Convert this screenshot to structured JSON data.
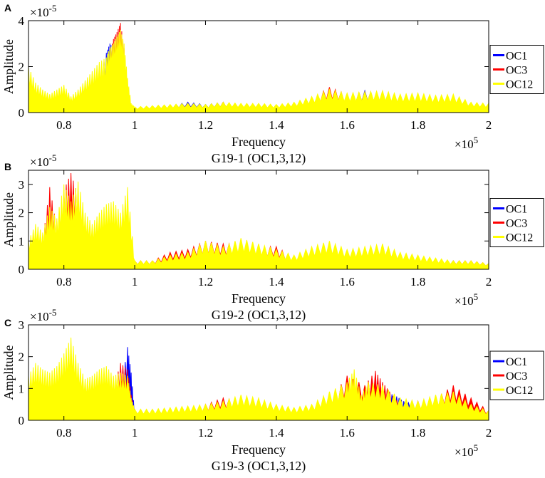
{
  "figure": {
    "background": "#ffffff",
    "axis_color": "#000000"
  },
  "chart_data": [
    {
      "panel_label": "A",
      "type": "line",
      "title": "G19-1 (OC1,3,12)",
      "xlabel": "Frequency",
      "ylabel": "Amplitude",
      "x_exponent": "×10",
      "x_exponent_power": "5",
      "y_exponent": "×10",
      "y_exponent_power": "-5",
      "xlim": [
        0.7,
        2.0
      ],
      "ylim": [
        0,
        4
      ],
      "xticks": [
        0.8,
        1.0,
        1.2,
        1.4,
        1.6,
        1.8,
        2.0
      ],
      "xtick_labels": [
        "0.8",
        "1",
        "1.2",
        "1.4",
        "1.6",
        "1.8",
        "2"
      ],
      "yticks": [
        0,
        2,
        4
      ],
      "ytick_labels": [
        "0",
        "2",
        "4"
      ],
      "legend": [
        "OC1",
        "OC3",
        "OC12"
      ],
      "legend_position": "outside-right",
      "series": [
        {
          "name": "OC1",
          "color": "#0000ff",
          "x": [
            0.7,
            0.72,
            0.74,
            0.76,
            0.78,
            0.8,
            0.82,
            0.84,
            0.86,
            0.88,
            0.9,
            0.92,
            0.93,
            0.94,
            0.95,
            0.96,
            0.97,
            0.98,
            0.99,
            1.0,
            1.05,
            1.1,
            1.15,
            1.2,
            1.25,
            1.3,
            1.35,
            1.4,
            1.45,
            1.5,
            1.55,
            1.6,
            1.65,
            1.7,
            1.75,
            1.8,
            1.85,
            1.9,
            1.95,
            2.0
          ],
          "values": [
            0.8,
            0.6,
            0.4,
            0.3,
            0.4,
            0.5,
            0.3,
            0.4,
            0.6,
            0.9,
            1.5,
            2.6,
            3.0,
            2.8,
            2.2,
            1.5,
            0.9,
            0.5,
            0.2,
            0.2,
            0.25,
            0.3,
            0.45,
            0.35,
            0.45,
            0.3,
            0.35,
            0.3,
            0.35,
            0.5,
            0.6,
            0.7,
            0.95,
            0.8,
            0.6,
            0.55,
            0.5,
            0.5,
            0.35,
            0.3
          ]
        },
        {
          "name": "OC3",
          "color": "#ff0000",
          "x": [
            0.7,
            0.72,
            0.74,
            0.76,
            0.78,
            0.8,
            0.82,
            0.84,
            0.86,
            0.88,
            0.9,
            0.92,
            0.93,
            0.94,
            0.95,
            0.96,
            0.97,
            0.98,
            0.99,
            1.0,
            1.05,
            1.1,
            1.15,
            1.2,
            1.25,
            1.3,
            1.35,
            1.4,
            1.45,
            1.5,
            1.55,
            1.6,
            1.65,
            1.7,
            1.75,
            1.8,
            1.85,
            1.9,
            1.95,
            2.0
          ],
          "values": [
            1.2,
            0.9,
            0.5,
            0.4,
            0.6,
            0.8,
            0.5,
            0.6,
            0.9,
            1.2,
            1.8,
            2.2,
            2.6,
            3.2,
            3.5,
            3.9,
            2.8,
            1.0,
            0.3,
            0.2,
            0.25,
            0.3,
            0.4,
            0.3,
            0.45,
            0.3,
            0.35,
            0.3,
            0.4,
            0.6,
            1.1,
            0.8,
            0.9,
            0.85,
            0.75,
            0.8,
            0.6,
            0.55,
            0.4,
            0.35
          ]
        },
        {
          "name": "OC12",
          "color": "#ffff00",
          "x": [
            0.7,
            0.72,
            0.74,
            0.76,
            0.78,
            0.8,
            0.82,
            0.84,
            0.86,
            0.88,
            0.9,
            0.92,
            0.93,
            0.94,
            0.95,
            0.96,
            0.97,
            0.98,
            0.99,
            1.0,
            1.05,
            1.1,
            1.15,
            1.2,
            1.25,
            1.3,
            1.35,
            1.4,
            1.45,
            1.5,
            1.55,
            1.6,
            1.65,
            1.7,
            1.75,
            1.8,
            1.85,
            1.9,
            1.95,
            2.0
          ],
          "values": [
            2.0,
            1.3,
            1.0,
            0.8,
            1.0,
            1.2,
            0.7,
            1.0,
            1.4,
            1.8,
            2.2,
            2.4,
            2.8,
            3.0,
            3.3,
            3.6,
            3.0,
            1.5,
            0.4,
            0.25,
            0.3,
            0.35,
            0.4,
            0.35,
            0.45,
            0.4,
            0.4,
            0.35,
            0.45,
            0.7,
            1.0,
            0.85,
            0.9,
            0.95,
            0.8,
            0.85,
            0.75,
            0.8,
            0.45,
            0.4
          ]
        }
      ]
    },
    {
      "panel_label": "B",
      "type": "line",
      "title": "G19-2 (OC1,3,12)",
      "xlabel": "Frequency",
      "ylabel": "Amplitude",
      "x_exponent": "×10",
      "x_exponent_power": "5",
      "y_exponent": "×10",
      "y_exponent_power": "-5",
      "xlim": [
        0.7,
        2.0
      ],
      "ylim": [
        0,
        3.5
      ],
      "xticks": [
        0.8,
        1.0,
        1.2,
        1.4,
        1.6,
        1.8,
        2.0
      ],
      "xtick_labels": [
        "0.8",
        "1",
        "1.2",
        "1.4",
        "1.6",
        "1.8",
        "2"
      ],
      "yticks": [
        0,
        1,
        2,
        3
      ],
      "ytick_labels": [
        "0",
        "1",
        "2",
        "3"
      ],
      "legend": [
        "OC1",
        "OC3",
        "OC12"
      ],
      "legend_position": "outside-right",
      "series": [
        {
          "name": "OC1",
          "color": "#0000ff",
          "x": [
            0.7,
            0.72,
            0.74,
            0.76,
            0.78,
            0.8,
            0.82,
            0.84,
            0.86,
            0.88,
            0.9,
            0.92,
            0.94,
            0.96,
            0.98,
            1.0,
            1.05,
            1.1,
            1.15,
            1.2,
            1.25,
            1.3,
            1.35,
            1.4,
            1.45,
            1.5,
            1.55,
            1.6,
            1.65,
            1.7,
            1.75,
            1.8,
            1.85,
            1.9,
            1.95,
            2.0
          ],
          "values": [
            0.6,
            0.8,
            0.5,
            0.7,
            1.0,
            1.3,
            1.5,
            0.8,
            0.6,
            0.5,
            0.6,
            0.7,
            0.5,
            0.4,
            0.6,
            0.2,
            0.2,
            0.25,
            0.3,
            0.35,
            0.4,
            0.3,
            0.35,
            0.3,
            0.3,
            0.35,
            0.4,
            0.3,
            0.35,
            0.3,
            0.25,
            0.3,
            0.25,
            0.3,
            0.2,
            0.2
          ]
        },
        {
          "name": "OC3",
          "color": "#ff0000",
          "x": [
            0.7,
            0.72,
            0.74,
            0.76,
            0.78,
            0.8,
            0.82,
            0.84,
            0.86,
            0.88,
            0.9,
            0.92,
            0.94,
            0.96,
            0.98,
            1.0,
            1.05,
            1.1,
            1.15,
            1.2,
            1.25,
            1.3,
            1.35,
            1.4,
            1.45,
            1.5,
            1.55,
            1.6,
            1.65,
            1.7,
            1.75,
            1.8,
            1.85,
            1.9,
            1.95,
            2.0
          ],
          "values": [
            0.9,
            1.2,
            1.0,
            2.9,
            1.5,
            2.8,
            3.4,
            2.6,
            1.4,
            0.8,
            1.0,
            1.2,
            1.1,
            1.3,
            1.5,
            0.3,
            0.3,
            0.6,
            0.7,
            1.0,
            0.9,
            0.9,
            0.8,
            0.8,
            0.4,
            0.5,
            0.7,
            0.6,
            0.5,
            0.6,
            0.5,
            0.4,
            0.3,
            0.3,
            0.3,
            0.2
          ]
        },
        {
          "name": "OC12",
          "color": "#ffff00",
          "x": [
            0.7,
            0.72,
            0.74,
            0.76,
            0.78,
            0.8,
            0.82,
            0.84,
            0.86,
            0.88,
            0.9,
            0.92,
            0.94,
            0.96,
            0.98,
            1.0,
            1.05,
            1.1,
            1.15,
            1.2,
            1.25,
            1.3,
            1.35,
            1.4,
            1.45,
            1.5,
            1.55,
            1.6,
            1.65,
            1.7,
            1.75,
            1.8,
            1.85,
            1.9,
            1.95,
            2.0
          ],
          "values": [
            1.0,
            1.6,
            1.3,
            2.2,
            1.8,
            3.0,
            2.4,
            3.1,
            2.0,
            1.6,
            2.0,
            2.3,
            2.4,
            2.0,
            2.9,
            0.3,
            0.3,
            0.5,
            0.6,
            1.0,
            0.8,
            1.1,
            0.9,
            0.7,
            0.5,
            0.8,
            1.0,
            0.7,
            0.8,
            0.9,
            0.6,
            0.5,
            0.4,
            0.3,
            0.3,
            0.2
          ]
        }
      ]
    },
    {
      "panel_label": "C",
      "type": "line",
      "title": "G19-3 (OC1,3,12)",
      "xlabel": "Frequency",
      "ylabel": "Amplitude",
      "x_exponent": "×10",
      "x_exponent_power": "5",
      "y_exponent": "×10",
      "y_exponent_power": "-5",
      "xlim": [
        0.7,
        2.0
      ],
      "ylim": [
        0,
        3
      ],
      "xticks": [
        0.8,
        1.0,
        1.2,
        1.4,
        1.6,
        1.8,
        2.0
      ],
      "xtick_labels": [
        "0.8",
        "1",
        "1.2",
        "1.4",
        "1.6",
        "1.8",
        "2"
      ],
      "yticks": [
        0,
        1,
        2,
        3
      ],
      "ytick_labels": [
        "0",
        "1",
        "2",
        "3"
      ],
      "legend": [
        "OC1",
        "OC3",
        "OC12"
      ],
      "legend_position": "outside-right",
      "series": [
        {
          "name": "OC1",
          "color": "#0000ff",
          "x": [
            0.7,
            0.72,
            0.74,
            0.76,
            0.78,
            0.8,
            0.82,
            0.84,
            0.86,
            0.88,
            0.9,
            0.92,
            0.94,
            0.96,
            0.98,
            0.99,
            1.0,
            1.05,
            1.1,
            1.15,
            1.2,
            1.25,
            1.3,
            1.35,
            1.4,
            1.45,
            1.5,
            1.55,
            1.6,
            1.65,
            1.7,
            1.72,
            1.74,
            1.76,
            1.8,
            1.85,
            1.9,
            1.95,
            2.0
          ],
          "values": [
            0.5,
            0.8,
            0.6,
            0.7,
            0.8,
            0.9,
            0.7,
            0.6,
            0.5,
            0.6,
            0.5,
            0.6,
            0.7,
            0.9,
            2.3,
            1.5,
            0.2,
            0.2,
            0.25,
            0.3,
            0.35,
            0.4,
            0.35,
            0.4,
            0.3,
            0.3,
            0.35,
            0.45,
            0.6,
            0.8,
            0.9,
            0.85,
            0.75,
            0.6,
            0.45,
            0.5,
            0.55,
            0.4,
            0.3
          ]
        },
        {
          "name": "OC3",
          "color": "#ff0000",
          "x": [
            0.7,
            0.72,
            0.74,
            0.76,
            0.78,
            0.8,
            0.82,
            0.84,
            0.86,
            0.88,
            0.9,
            0.92,
            0.94,
            0.96,
            0.98,
            0.99,
            1.0,
            1.05,
            1.1,
            1.15,
            1.2,
            1.25,
            1.3,
            1.35,
            1.4,
            1.45,
            1.5,
            1.55,
            1.6,
            1.65,
            1.68,
            1.7,
            1.72,
            1.75,
            1.8,
            1.85,
            1.9,
            1.95,
            2.0
          ],
          "values": [
            0.8,
            1.2,
            1.0,
            1.3,
            1.2,
            1.4,
            1.5,
            1.1,
            0.9,
            1.0,
            1.2,
            1.3,
            1.0,
            1.8,
            1.6,
            0.8,
            0.3,
            0.3,
            0.35,
            0.4,
            0.5,
            0.7,
            0.6,
            0.6,
            0.3,
            0.35,
            0.4,
            0.6,
            1.4,
            1.1,
            1.55,
            1.2,
            0.9,
            0.5,
            0.6,
            0.7,
            1.1,
            0.7,
            0.3
          ]
        },
        {
          "name": "OC12",
          "color": "#ffff00",
          "x": [
            0.7,
            0.72,
            0.74,
            0.76,
            0.78,
            0.8,
            0.82,
            0.84,
            0.86,
            0.88,
            0.9,
            0.92,
            0.94,
            0.96,
            0.98,
            0.99,
            1.0,
            1.05,
            1.1,
            1.15,
            1.2,
            1.25,
            1.3,
            1.35,
            1.4,
            1.45,
            1.5,
            1.55,
            1.6,
            1.62,
            1.64,
            1.66,
            1.7,
            1.75,
            1.8,
            1.85,
            1.9,
            1.95,
            2.0
          ],
          "values": [
            1.4,
            1.8,
            1.6,
            1.5,
            1.7,
            2.1,
            2.6,
            1.8,
            1.3,
            1.4,
            1.6,
            1.7,
            1.4,
            1.5,
            1.4,
            0.7,
            0.35,
            0.35,
            0.4,
            0.45,
            0.5,
            0.6,
            0.8,
            0.7,
            0.5,
            0.4,
            0.5,
            0.9,
            1.2,
            1.6,
            0.8,
            1.2,
            1.1,
            0.7,
            0.6,
            0.8,
            0.9,
            0.5,
            0.3
          ]
        }
      ]
    }
  ]
}
